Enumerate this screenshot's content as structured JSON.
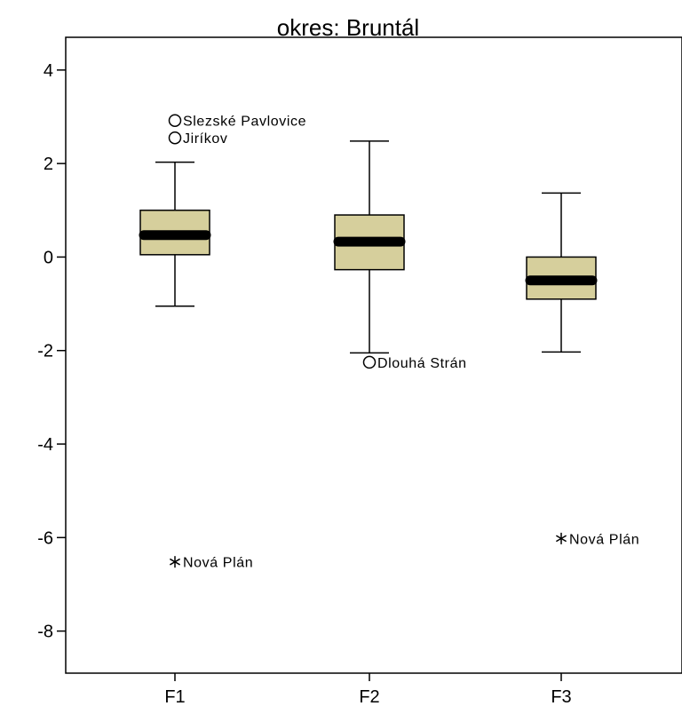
{
  "chart_data": {
    "type": "boxplot",
    "title": "okres: Bruntál",
    "xlabel": "",
    "ylabel": "",
    "categories": [
      "F1",
      "F2",
      "F3"
    ],
    "ylim": [
      -8.9,
      4.7
    ],
    "yticks": [
      4,
      2,
      0,
      -2,
      -4,
      -6,
      -8
    ],
    "box_fill": "#d6cf9c",
    "grid": false,
    "legend": "none",
    "boxes": [
      {
        "name": "F1",
        "whisker_low": -1.05,
        "q1": 0.05,
        "median": 0.47,
        "q3": 1.0,
        "whisker_high": 2.03
      },
      {
        "name": "F2",
        "whisker_low": -2.05,
        "q1": -0.27,
        "median": 0.33,
        "q3": 0.9,
        "whisker_high": 2.48
      },
      {
        "name": "F3",
        "whisker_low": -2.03,
        "q1": -0.9,
        "median": -0.5,
        "q3": 0.0,
        "whisker_high": 1.37
      }
    ],
    "outliers": [
      {
        "category": "F1",
        "y": 2.92,
        "label": "Slezské Pavlovice",
        "marker": "circle"
      },
      {
        "category": "F1",
        "y": 2.55,
        "label": "Jiríkov",
        "marker": "circle"
      },
      {
        "category": "F1",
        "y": -6.52,
        "label": "Nová Plán",
        "marker": "star"
      },
      {
        "category": "F2",
        "y": -2.25,
        "label": "Dlouhá Strán",
        "marker": "circle"
      },
      {
        "category": "F3",
        "y": -6.02,
        "label": "Nová Plán",
        "marker": "star"
      }
    ]
  }
}
